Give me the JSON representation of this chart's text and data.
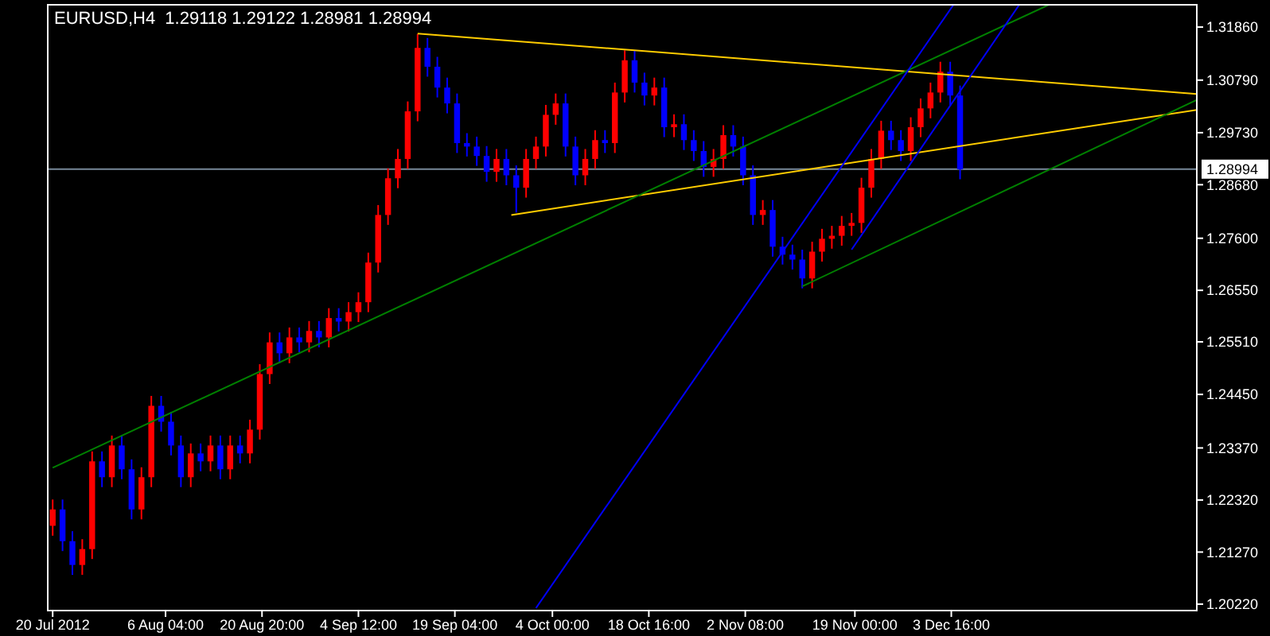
{
  "chart_data": {
    "type": "candlestick",
    "title": "EURUSD,H4  1.29118 1.29122 1.28981 1.28994",
    "x": [
      "2012-07-20T00:00",
      "2012-07-21T12:00",
      "2012-07-23T00:00",
      "2012-07-24T12:00",
      "2012-07-26T00:00",
      "2012-07-27T12:00",
      "2012-07-29T00:00",
      "2012-07-30T12:00",
      "2012-08-01T00:00",
      "2012-08-02T12:00",
      "2012-08-04T00:00",
      "2012-08-05T12:00",
      "2012-08-07T00:00",
      "2012-08-08T12:00",
      "2012-08-10T00:00",
      "2012-08-11T12:00",
      "2012-08-13T00:00",
      "2012-08-14T12:00",
      "2012-08-16T00:00",
      "2012-08-17T12:00",
      "2012-08-19T00:00",
      "2012-08-20T12:00",
      "2012-08-22T00:00",
      "2012-08-23T12:00",
      "2012-08-25T00:00",
      "2012-08-26T12:00",
      "2012-08-28T00:00",
      "2012-08-29T12:00",
      "2012-08-31T00:00",
      "2012-09-01T12:00",
      "2012-09-03T00:00",
      "2012-09-04T12:00",
      "2012-09-06T00:00",
      "2012-09-07T12:00",
      "2012-09-09T00:00",
      "2012-09-10T12:00",
      "2012-09-12T00:00",
      "2012-09-13T12:00",
      "2012-09-15T00:00",
      "2012-09-16T12:00",
      "2012-09-18T00:00",
      "2012-09-19T12:00",
      "2012-09-21T00:00",
      "2012-09-22T12:00",
      "2012-09-24T00:00",
      "2012-09-25T12:00",
      "2012-09-27T00:00",
      "2012-09-28T12:00",
      "2012-09-30T00:00",
      "2012-10-01T12:00",
      "2012-10-03T00:00",
      "2012-10-04T12:00",
      "2012-10-06T00:00",
      "2012-10-07T12:00",
      "2012-10-09T00:00",
      "2012-10-10T12:00",
      "2012-10-12T00:00",
      "2012-10-13T12:00",
      "2012-10-15T00:00",
      "2012-10-16T12:00",
      "2012-10-18T00:00",
      "2012-10-19T12:00",
      "2012-10-21T00:00",
      "2012-10-22T12:00",
      "2012-10-24T00:00",
      "2012-10-25T12:00",
      "2012-10-27T00:00",
      "2012-10-28T12:00",
      "2012-10-30T00:00",
      "2012-10-31T12:00",
      "2012-11-02T00:00",
      "2012-11-03T12:00",
      "2012-11-05T00:00",
      "2012-11-06T12:00",
      "2012-11-08T00:00",
      "2012-11-09T12:00",
      "2012-11-11T00:00",
      "2012-11-12T12:00",
      "2012-11-14T00:00",
      "2012-11-15T12:00",
      "2012-11-17T00:00",
      "2012-11-18T12:00",
      "2012-11-20T00:00",
      "2012-11-21T12:00",
      "2012-11-23T00:00",
      "2012-11-24T12:00",
      "2012-11-26T00:00",
      "2012-11-27T12:00",
      "2012-11-29T00:00",
      "2012-11-30T12:00",
      "2012-12-02T00:00",
      "2012-12-03T12:00",
      "2012-12-05T00:00"
    ],
    "ohlc": [
      [
        1.218,
        1.2233,
        1.216,
        1.2213
      ],
      [
        1.2213,
        1.2233,
        1.2129,
        1.2149
      ],
      [
        1.2149,
        1.2169,
        1.2081,
        1.2101
      ],
      [
        1.2101,
        1.2153,
        1.2081,
        1.2133
      ],
      [
        1.2133,
        1.233,
        1.2113,
        1.231
      ],
      [
        1.231,
        1.233,
        1.2258,
        1.2278
      ],
      [
        1.2278,
        1.2362,
        1.2258,
        1.2342
      ],
      [
        1.2342,
        1.2362,
        1.2274,
        1.2294
      ],
      [
        1.2294,
        1.2314,
        1.2193,
        1.2213
      ],
      [
        1.2213,
        1.2298,
        1.2193,
        1.2278
      ],
      [
        1.2278,
        1.2442,
        1.2258,
        1.2422
      ],
      [
        1.2422,
        1.2442,
        1.237,
        1.239
      ],
      [
        1.239,
        1.241,
        1.2322,
        1.2342
      ],
      [
        1.2342,
        1.2362,
        1.2258,
        1.2278
      ],
      [
        1.2278,
        1.2346,
        1.2258,
        1.2326
      ],
      [
        1.2326,
        1.2346,
        1.229,
        1.231
      ],
      [
        1.231,
        1.2362,
        1.229,
        1.2342
      ],
      [
        1.2342,
        1.2362,
        1.2274,
        1.2294
      ],
      [
        1.2294,
        1.2362,
        1.2274,
        1.2342
      ],
      [
        1.2342,
        1.2362,
        1.2306,
        1.2326
      ],
      [
        1.2326,
        1.2394,
        1.2306,
        1.2374
      ],
      [
        1.2374,
        1.2506,
        1.2354,
        1.2486
      ],
      [
        1.2486,
        1.257,
        1.2466,
        1.255
      ],
      [
        1.255,
        1.257,
        1.2508,
        1.2528
      ],
      [
        1.2528,
        1.258,
        1.2508,
        1.256
      ],
      [
        1.256,
        1.258,
        1.253,
        1.255
      ],
      [
        1.255,
        1.2593,
        1.253,
        1.2573
      ],
      [
        1.2573,
        1.2593,
        1.254,
        1.256
      ],
      [
        1.256,
        1.2619,
        1.254,
        1.2599
      ],
      [
        1.2599,
        1.2619,
        1.2572,
        1.2592
      ],
      [
        1.2592,
        1.2631,
        1.2572,
        1.2611
      ],
      [
        1.2611,
        1.2651,
        1.2591,
        1.2631
      ],
      [
        1.2631,
        1.2731,
        1.2611,
        1.2711
      ],
      [
        1.2711,
        1.2827,
        1.2691,
        1.2807
      ],
      [
        1.2807,
        1.2901,
        1.2787,
        1.2881
      ],
      [
        1.2881,
        1.294,
        1.2861,
        1.292
      ],
      [
        1.292,
        1.3036,
        1.29,
        1.3016
      ],
      [
        1.3016,
        1.3172,
        1.2996,
        1.3144
      ],
      [
        1.3144,
        1.3164,
        1.3086,
        1.3106
      ],
      [
        1.3106,
        1.3126,
        1.3044,
        1.3064
      ],
      [
        1.3064,
        1.3084,
        1.3012,
        1.3032
      ],
      [
        1.3032,
        1.3052,
        1.2932,
        1.2952
      ],
      [
        1.2952,
        1.2972,
        1.2925,
        1.2945
      ],
      [
        1.2945,
        1.2965,
        1.2906,
        1.2926
      ],
      [
        1.2926,
        1.2946,
        1.2874,
        1.2894
      ],
      [
        1.2894,
        1.294,
        1.2874,
        1.292
      ],
      [
        1.292,
        1.294,
        1.2867,
        1.2887
      ],
      [
        1.2887,
        1.2907,
        1.2812,
        1.2862
      ],
      [
        1.2862,
        1.294,
        1.2842,
        1.292
      ],
      [
        1.292,
        1.2965,
        1.29,
        1.2945
      ],
      [
        1.2945,
        1.3029,
        1.2925,
        1.3009
      ],
      [
        1.3009,
        1.3052,
        1.2989,
        1.3032
      ],
      [
        1.3032,
        1.3052,
        1.2925,
        1.2945
      ],
      [
        1.2945,
        1.2965,
        1.2867,
        1.2887
      ],
      [
        1.2887,
        1.294,
        1.2867,
        1.292
      ],
      [
        1.292,
        1.2978,
        1.29,
        1.2958
      ],
      [
        1.2958,
        1.2978,
        1.2932,
        1.2952
      ],
      [
        1.2952,
        1.3074,
        1.2932,
        1.3054
      ],
      [
        1.3054,
        1.3139,
        1.3034,
        1.3119
      ],
      [
        1.3119,
        1.3139,
        1.3054,
        1.3074
      ],
      [
        1.3074,
        1.3094,
        1.3028,
        1.3048
      ],
      [
        1.3048,
        1.3084,
        1.3028,
        1.3064
      ],
      [
        1.3064,
        1.3084,
        1.2964,
        1.2984
      ],
      [
        1.2984,
        1.301,
        1.2964,
        1.299
      ],
      [
        1.299,
        1.301,
        1.2938,
        1.2958
      ],
      [
        1.2958,
        1.2978,
        1.2916,
        1.2936
      ],
      [
        1.2936,
        1.2956,
        1.2884,
        1.2904
      ],
      [
        1.2904,
        1.294,
        1.2884,
        1.292
      ],
      [
        1.292,
        1.2988,
        1.29,
        1.2968
      ],
      [
        1.2968,
        1.2988,
        1.2925,
        1.2945
      ],
      [
        1.2945,
        1.2965,
        1.2867,
        1.2887
      ],
      [
        1.2887,
        1.2907,
        1.2787,
        1.2807
      ],
      [
        1.2807,
        1.2837,
        1.2787,
        1.2817
      ],
      [
        1.2817,
        1.2837,
        1.2723,
        1.2743
      ],
      [
        1.2743,
        1.2763,
        1.2707,
        1.2727
      ],
      [
        1.2727,
        1.2747,
        1.2697,
        1.2717
      ],
      [
        1.2717,
        1.2737,
        1.2659,
        1.2679
      ],
      [
        1.2679,
        1.2753,
        1.2659,
        1.2733
      ],
      [
        1.2733,
        1.2779,
        1.2713,
        1.2759
      ],
      [
        1.2759,
        1.2785,
        1.2739,
        1.2765
      ],
      [
        1.2765,
        1.2805,
        1.2745,
        1.2785
      ],
      [
        1.2785,
        1.2811,
        1.2765,
        1.2791
      ],
      [
        1.2791,
        1.2882,
        1.2771,
        1.2862
      ],
      [
        1.2862,
        1.294,
        1.2842,
        1.292
      ],
      [
        1.292,
        1.2997,
        1.29,
        1.2977
      ],
      [
        1.2977,
        1.2997,
        1.2938,
        1.2958
      ],
      [
        1.2958,
        1.2978,
        1.2916,
        1.2936
      ],
      [
        1.2936,
        1.3004,
        1.2916,
        1.2984
      ],
      [
        1.2984,
        1.3042,
        1.2964,
        1.3022
      ],
      [
        1.3022,
        1.3074,
        1.3002,
        1.3054
      ],
      [
        1.3054,
        1.3116,
        1.3034,
        1.3096
      ],
      [
        1.3096,
        1.3116,
        1.3028,
        1.3048
      ],
      [
        1.3048,
        1.3068,
        1.2879,
        1.2899
      ]
    ],
    "colors": [
      "#ff0000",
      "#0000ff",
      "#0000ff",
      "#ff0000",
      "#ff0000",
      "#0000ff",
      "#ff0000",
      "#0000ff",
      "#0000ff",
      "#ff0000",
      "#ff0000",
      "#0000ff",
      "#0000ff",
      "#0000ff",
      "#ff0000",
      "#0000ff",
      "#ff0000",
      "#0000ff",
      "#ff0000",
      "#0000ff",
      "#ff0000",
      "#ff0000",
      "#ff0000",
      "#0000ff",
      "#ff0000",
      "#0000ff",
      "#ff0000",
      "#0000ff",
      "#ff0000",
      "#0000ff",
      "#ff0000",
      "#ff0000",
      "#ff0000",
      "#ff0000",
      "#ff0000",
      "#ff0000",
      "#ff0000",
      "#ff0000",
      "#0000ff",
      "#0000ff",
      "#0000ff",
      "#0000ff",
      "#0000ff",
      "#0000ff",
      "#0000ff",
      "#ff0000",
      "#0000ff",
      "#0000ff",
      "#ff0000",
      "#ff0000",
      "#ff0000",
      "#ff0000",
      "#0000ff",
      "#0000ff",
      "#ff0000",
      "#ff0000",
      "#0000ff",
      "#ff0000",
      "#ff0000",
      "#0000ff",
      "#0000ff",
      "#ff0000",
      "#0000ff",
      "#ff0000",
      "#0000ff",
      "#0000ff",
      "#0000ff",
      "#ff0000",
      "#ff0000",
      "#0000ff",
      "#0000ff",
      "#0000ff",
      "#ff0000",
      "#0000ff",
      "#0000ff",
      "#0000ff",
      "#0000ff",
      "#ff0000",
      "#ff0000",
      "#ff0000",
      "#ff0000",
      "#ff0000",
      "#ff0000",
      "#ff0000",
      "#ff0000",
      "#0000ff",
      "#0000ff",
      "#ff0000",
      "#ff0000",
      "#ff0000",
      "#ff0000",
      "#0000ff",
      "#0000ff"
    ],
    "series": [
      {
        "type": "line",
        "color": "#ffcc00",
        "x": [
          "2012-09-13T12:00",
          "2013-01-10T00:00"
        ],
        "values": [
          1.3173,
          1.3051
        ]
      },
      {
        "type": "line",
        "color": "#ffcc00",
        "x": [
          "2012-09-27T18:00",
          "2013-01-10T00:00"
        ],
        "values": [
          1.2807,
          1.3019
        ]
      },
      {
        "type": "line",
        "color": "#008000",
        "x": [
          "2012-07-20T00:00",
          "2012-12-18T12:00"
        ],
        "values": [
          1.2297,
          1.3231
        ]
      },
      {
        "type": "line",
        "color": "#008000",
        "x": [
          "2012-11-11T00:00",
          "2013-01-10T00:00"
        ],
        "values": [
          1.2663,
          1.3039
        ]
      },
      {
        "type": "line",
        "color": "#0000ff",
        "x": [
          "2012-10-01T12:00",
          "2012-12-04T00:00"
        ],
        "values": [
          1.2014,
          1.3231
        ]
      },
      {
        "type": "line",
        "color": "#0000ff",
        "x": [
          "2012-11-18T12:00",
          "2012-12-14T00:00"
        ],
        "values": [
          1.2737,
          1.3231
        ]
      }
    ],
    "ref_lines": [
      {
        "axis": "y",
        "value": 1.28994,
        "label": "1.28994",
        "color": "#778899"
      }
    ],
    "xlim": [
      "2012-07-19T06:00",
      "2013-01-10T00:00"
    ],
    "xticks": [
      {
        "value": "2012-07-20T00:00",
        "label": "20 Jul 2012"
      },
      {
        "value": "2012-08-06T04:00",
        "label": "6 Aug 04:00"
      },
      {
        "value": "2012-08-20T20:00",
        "label": "20 Aug 20:00"
      },
      {
        "value": "2012-09-04T12:00",
        "label": "4 Sep 12:00"
      },
      {
        "value": "2012-09-19T04:00",
        "label": "19 Sep 04:00"
      },
      {
        "value": "2012-10-04T00:00",
        "label": "4 Oct 00:00"
      },
      {
        "value": "2012-10-18T16:00",
        "label": "18 Oct 16:00"
      },
      {
        "value": "2012-11-02T08:00",
        "label": "2 Nov 08:00"
      },
      {
        "value": "2012-11-19T00:00",
        "label": "19 Nov 00:00"
      },
      {
        "value": "2012-12-03T16:00",
        "label": "3 Dec 16:00"
      }
    ],
    "ylim": [
      1.2009,
      1.3231
    ],
    "yticks": [
      {
        "value": 1.3186,
        "label": "1.31860"
      },
      {
        "value": 1.3079,
        "label": "1.30790"
      },
      {
        "value": 1.2973,
        "label": "1.29730"
      },
      {
        "value": 1.2868,
        "label": "1.28680"
      },
      {
        "value": 1.276,
        "label": "1.27600"
      },
      {
        "value": 1.2655,
        "label": "1.26550"
      },
      {
        "value": 1.2551,
        "label": "1.25510"
      },
      {
        "value": 1.2445,
        "label": "1.24450"
      },
      {
        "value": 1.2337,
        "label": "1.23370"
      },
      {
        "value": 1.2232,
        "label": "1.22320"
      },
      {
        "value": 1.2127,
        "label": "1.21270"
      },
      {
        "value": 1.2022,
        "label": "1.20220"
      }
    ],
    "grid": false
  }
}
